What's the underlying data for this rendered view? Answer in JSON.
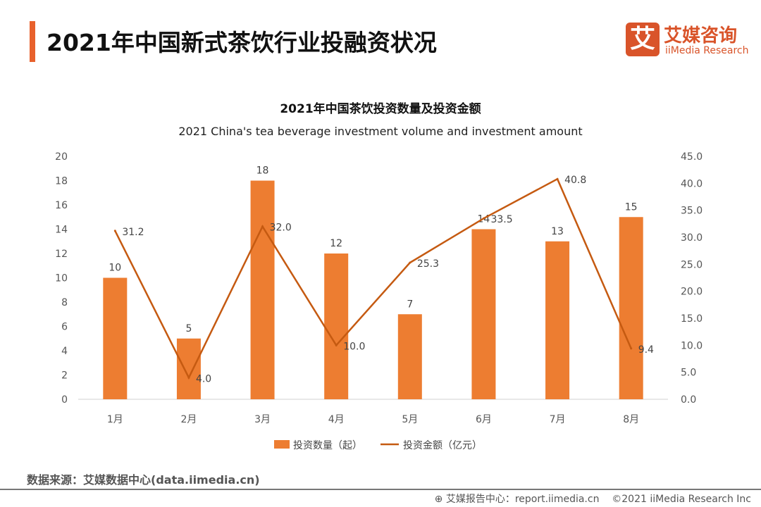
{
  "header": {
    "title": "2021年中国新式茶饮行业投融资状况",
    "logo_cn": "艾媒咨询",
    "logo_mark": "艾",
    "logo_en": "iiMedia Research"
  },
  "chart_data": {
    "type": "bar+line",
    "title": "2021年中国茶饮投资数量及投资金额",
    "subtitle": "2021 China's tea beverage investment volume and investment amount",
    "categories": [
      "1月",
      "2月",
      "3月",
      "4月",
      "5月",
      "6月",
      "7月",
      "8月"
    ],
    "series": [
      {
        "name": "投资数量（起）",
        "type": "bar",
        "axis": "left",
        "values": [
          10,
          5,
          18,
          12,
          7,
          14,
          13,
          15
        ],
        "color": "#ed7d31"
      },
      {
        "name": "投资金额（亿元）",
        "type": "line",
        "axis": "right",
        "values": [
          31.2,
          4.0,
          32.0,
          10.0,
          25.3,
          33.5,
          40.8,
          9.4
        ],
        "color": "#c55a11"
      }
    ],
    "ylim_left": [
      0,
      20
    ],
    "yticks_left": [
      "0",
      "2",
      "4",
      "6",
      "8",
      "10",
      "12",
      "14",
      "16",
      "18",
      "20"
    ],
    "ylim_right": [
      0,
      45
    ],
    "yticks_right": [
      "0.0",
      "5.0",
      "10.0",
      "15.0",
      "20.0",
      "25.0",
      "30.0",
      "35.0",
      "40.0",
      "45.0"
    ],
    "grid": false,
    "legend": "bottom"
  },
  "footer": {
    "source": "数据来源：艾媒数据中心(data.iimedia.cn)",
    "report": "艾媒报告中心：report.iimedia.cn",
    "copyright": "©2021  iiMedia Research  Inc"
  }
}
